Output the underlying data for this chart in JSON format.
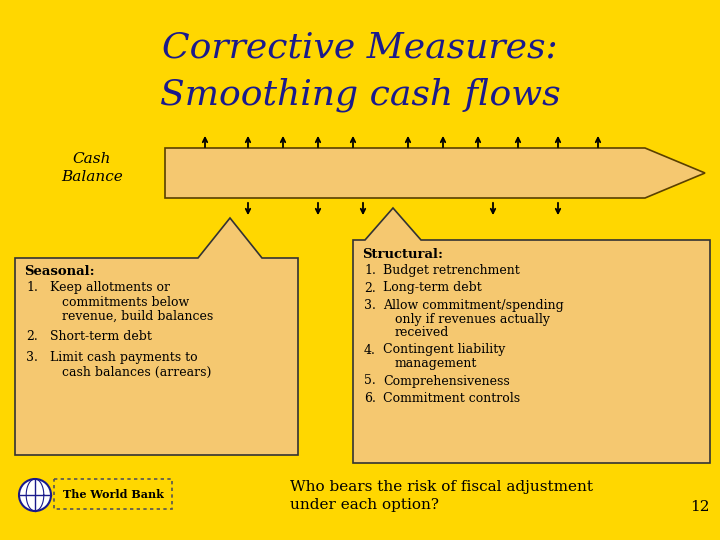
{
  "title_line1": "Corrective Measures:",
  "title_line2": "Smoothing cash flows",
  "title_color": "#1a1a8c",
  "bg_color": "#FFD700",
  "arrow_face_color": "#F5C870",
  "arrow_edge_color": "#5a4000",
  "box_face_color": "#F5C870",
  "box_edge_color": "#333333",
  "cash_balance_label": "Cash\nBalance",
  "seasonal_title": "Seasonal:",
  "seasonal_items_raw": [
    [
      "Keep allotments or",
      "commitments below",
      "revenue, build balances"
    ],
    [
      "Short-term debt"
    ],
    [
      "Limit cash payments to",
      "cash balances (arrears)"
    ]
  ],
  "structural_title": "Structural:",
  "structural_items_raw": [
    [
      "Budget retrenchment"
    ],
    [
      "Long-term debt"
    ],
    [
      "Allow commitment/spending",
      "only if revenues actually",
      "received"
    ],
    [
      "Contingent liability",
      "management"
    ],
    [
      "Comprehensiveness"
    ],
    [
      "Commitment controls"
    ]
  ],
  "bottom_text_line1": "Who bears the risk of fiscal adjustment",
  "bottom_text_line2": "under each option?",
  "page_number": "12",
  "wb_globe_color": "#1a1a8c"
}
